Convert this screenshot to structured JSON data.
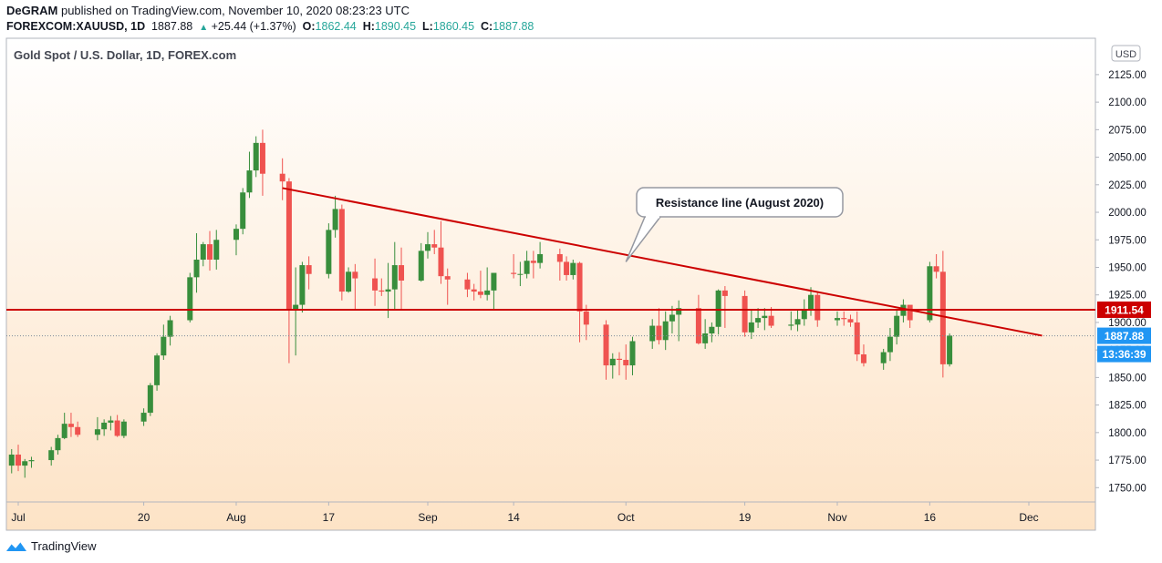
{
  "header": {
    "author": "DeGRAM",
    "published_text": "published on TradingView.com, November 10, 2020 08:23:23 UTC",
    "symbol": "FOREXCOM:XAUUSD, 1D",
    "last": "1887.88",
    "change": "+25.44 (+1.37%)",
    "o_label": "O:",
    "o_value": "1862.44",
    "h_label": "H:",
    "h_value": "1890.45",
    "l_label": "L:",
    "l_value": "1860.45",
    "c_label": "C:",
    "c_value": "1887.88"
  },
  "footer": {
    "brand": "TradingView"
  },
  "colors": {
    "up": "#26a69a",
    "down": "#ef5350",
    "candle_up_fill": "#388e3c",
    "resistance": "#cc0000",
    "price_tag": "#2196f3"
  },
  "chart_data": {
    "type": "candlestick",
    "title": "Gold Spot / U.S. Dollar, 1D, FOREX.com",
    "currency_label": "USD",
    "ylim": [
      1737,
      2158
    ],
    "y_ticks": [
      1750,
      1775,
      1800,
      1825,
      1850,
      1875,
      1900,
      1925,
      1950,
      1975,
      2000,
      2025,
      2050,
      2075,
      2100,
      2125
    ],
    "y_tick_labels": [
      "1750.00",
      "1775.00",
      "1800.00",
      "1825.00",
      "1850.00",
      "1875.00",
      "1900.00",
      "1925.00",
      "1950.00",
      "1975.00",
      "2000.00",
      "2025.00",
      "2050.00",
      "2075.00",
      "2100.00",
      "2125.00"
    ],
    "x_labels": [
      {
        "label": "Jul",
        "date": "2020-07-01"
      },
      {
        "label": "20",
        "date": "2020-07-20"
      },
      {
        "label": "Aug",
        "date": "2020-08-03"
      },
      {
        "label": "17",
        "date": "2020-08-17"
      },
      {
        "label": "Sep",
        "date": "2020-09-01"
      },
      {
        "label": "14",
        "date": "2020-09-14"
      },
      {
        "label": "Oct",
        "date": "2020-10-01"
      },
      {
        "label": "19",
        "date": "2020-10-19"
      },
      {
        "label": "Nov",
        "date": "2020-11-02"
      },
      {
        "label": "16",
        "date": "2020-11-16"
      },
      {
        "label": "Dec",
        "date": "2020-12-01"
      }
    ],
    "candles": [
      {
        "d": "2020-06-30",
        "o": 1770,
        "h": 1785,
        "l": 1763,
        "c": 1780
      },
      {
        "d": "2020-07-01",
        "o": 1780,
        "h": 1789,
        "l": 1765,
        "c": 1770
      },
      {
        "d": "2020-07-02",
        "o": 1770,
        "h": 1776,
        "l": 1759,
        "c": 1774
      },
      {
        "d": "2020-07-03",
        "o": 1774,
        "h": 1778,
        "l": 1768,
        "c": 1775
      },
      {
        "d": "2020-07-06",
        "o": 1775,
        "h": 1787,
        "l": 1770,
        "c": 1784
      },
      {
        "d": "2020-07-07",
        "o": 1784,
        "h": 1798,
        "l": 1780,
        "c": 1795
      },
      {
        "d": "2020-07-08",
        "o": 1795,
        "h": 1818,
        "l": 1794,
        "c": 1808
      },
      {
        "d": "2020-07-09",
        "o": 1808,
        "h": 1818,
        "l": 1796,
        "c": 1805
      },
      {
        "d": "2020-07-10",
        "o": 1805,
        "h": 1810,
        "l": 1796,
        "c": 1798
      },
      {
        "d": "2020-07-13",
        "o": 1798,
        "h": 1814,
        "l": 1793,
        "c": 1803
      },
      {
        "d": "2020-07-14",
        "o": 1803,
        "h": 1812,
        "l": 1797,
        "c": 1809
      },
      {
        "d": "2020-07-15",
        "o": 1809,
        "h": 1815,
        "l": 1802,
        "c": 1811
      },
      {
        "d": "2020-07-16",
        "o": 1811,
        "h": 1816,
        "l": 1796,
        "c": 1797
      },
      {
        "d": "2020-07-17",
        "o": 1797,
        "h": 1812,
        "l": 1795,
        "c": 1810
      },
      {
        "d": "2020-07-20",
        "o": 1810,
        "h": 1822,
        "l": 1806,
        "c": 1818
      },
      {
        "d": "2020-07-21",
        "o": 1818,
        "h": 1845,
        "l": 1815,
        "c": 1843
      },
      {
        "d": "2020-07-22",
        "o": 1843,
        "h": 1872,
        "l": 1838,
        "c": 1870
      },
      {
        "d": "2020-07-23",
        "o": 1870,
        "h": 1898,
        "l": 1866,
        "c": 1887
      },
      {
        "d": "2020-07-24",
        "o": 1887,
        "h": 1906,
        "l": 1879,
        "c": 1902
      },
      {
        "d": "2020-07-27",
        "o": 1902,
        "h": 1945,
        "l": 1900,
        "c": 1941
      },
      {
        "d": "2020-07-28",
        "o": 1941,
        "h": 1981,
        "l": 1927,
        "c": 1957
      },
      {
        "d": "2020-07-29",
        "o": 1957,
        "h": 1973,
        "l": 1951,
        "c": 1971
      },
      {
        "d": "2020-07-30",
        "o": 1971,
        "h": 1983,
        "l": 1947,
        "c": 1957
      },
      {
        "d": "2020-07-31",
        "o": 1957,
        "h": 1984,
        "l": 1948,
        "c": 1975
      },
      {
        "d": "2020-08-03",
        "o": 1975,
        "h": 1989,
        "l": 1961,
        "c": 1985
      },
      {
        "d": "2020-08-04",
        "o": 1985,
        "h": 2022,
        "l": 1980,
        "c": 2018
      },
      {
        "d": "2020-08-05",
        "o": 2018,
        "h": 2055,
        "l": 2013,
        "c": 2038
      },
      {
        "d": "2020-08-06",
        "o": 2038,
        "h": 2069,
        "l": 2032,
        "c": 2063
      },
      {
        "d": "2020-08-07",
        "o": 2063,
        "h": 2075,
        "l": 2015,
        "c": 2035
      },
      {
        "d": "2020-08-10",
        "o": 2035,
        "h": 2049,
        "l": 2011,
        "c": 2028
      },
      {
        "d": "2020-08-11",
        "o": 2028,
        "h": 2031,
        "l": 1863,
        "c": 1912
      },
      {
        "d": "2020-08-12",
        "o": 1912,
        "h": 1950,
        "l": 1870,
        "c": 1916
      },
      {
        "d": "2020-08-13",
        "o": 1916,
        "h": 1955,
        "l": 1909,
        "c": 1952
      },
      {
        "d": "2020-08-14",
        "o": 1952,
        "h": 1960,
        "l": 1930,
        "c": 1944
      },
      {
        "d": "2020-08-17",
        "o": 1944,
        "h": 1990,
        "l": 1940,
        "c": 1984
      },
      {
        "d": "2020-08-18",
        "o": 1984,
        "h": 2015,
        "l": 1977,
        "c": 2003
      },
      {
        "d": "2020-08-19",
        "o": 2003,
        "h": 2007,
        "l": 1920,
        "c": 1928
      },
      {
        "d": "2020-08-20",
        "o": 1928,
        "h": 1950,
        "l": 1927,
        "c": 1946
      },
      {
        "d": "2020-08-21",
        "o": 1946,
        "h": 1953,
        "l": 1911,
        "c": 1940
      },
      {
        "d": "2020-08-24",
        "o": 1940,
        "h": 1958,
        "l": 1915,
        "c": 1929
      },
      {
        "d": "2020-08-25",
        "o": 1929,
        "h": 1940,
        "l": 1924,
        "c": 1928
      },
      {
        "d": "2020-08-26",
        "o": 1928,
        "h": 1954,
        "l": 1904,
        "c": 1930
      },
      {
        "d": "2020-08-27",
        "o": 1930,
        "h": 1973,
        "l": 1912,
        "c": 1952
      },
      {
        "d": "2020-08-28",
        "o": 1952,
        "h": 1968,
        "l": 1912,
        "c": 1938
      },
      {
        "d": "2020-08-31",
        "o": 1938,
        "h": 1972,
        "l": 1937,
        "c": 1965
      },
      {
        "d": "2020-09-01",
        "o": 1965,
        "h": 1982,
        "l": 1958,
        "c": 1971
      },
      {
        "d": "2020-09-02",
        "o": 1971,
        "h": 1984,
        "l": 1962,
        "c": 1968
      },
      {
        "d": "2020-09-03",
        "o": 1968,
        "h": 1992,
        "l": 1935,
        "c": 1942
      },
      {
        "d": "2020-09-04",
        "o": 1942,
        "h": 1949,
        "l": 1916,
        "c": 1939
      },
      {
        "d": "2020-09-07",
        "o": 1939,
        "h": 1945,
        "l": 1923,
        "c": 1930
      },
      {
        "d": "2020-09-08",
        "o": 1930,
        "h": 1935,
        "l": 1920,
        "c": 1928
      },
      {
        "d": "2020-09-09",
        "o": 1928,
        "h": 1947,
        "l": 1922,
        "c": 1925
      },
      {
        "d": "2020-09-10",
        "o": 1925,
        "h": 1950,
        "l": 1920,
        "c": 1929
      },
      {
        "d": "2020-09-11",
        "o": 1929,
        "h": 1945,
        "l": 1912,
        "c": 1945
      },
      {
        "d": "2020-09-14",
        "o": 1945,
        "h": 1962,
        "l": 1940,
        "c": 1944
      },
      {
        "d": "2020-09-15",
        "o": 1944,
        "h": 1955,
        "l": 1933,
        "c": 1944
      },
      {
        "d": "2020-09-16",
        "o": 1944,
        "h": 1965,
        "l": 1940,
        "c": 1956
      },
      {
        "d": "2020-09-17",
        "o": 1956,
        "h": 1965,
        "l": 1940,
        "c": 1954
      },
      {
        "d": "2020-09-18",
        "o": 1954,
        "h": 1973,
        "l": 1949,
        "c": 1962
      },
      {
        "d": "2020-09-21",
        "o": 1962,
        "h": 1967,
        "l": 1938,
        "c": 1955
      },
      {
        "d": "2020-09-22",
        "o": 1955,
        "h": 1960,
        "l": 1938,
        "c": 1943
      },
      {
        "d": "2020-09-23",
        "o": 1943,
        "h": 1957,
        "l": 1939,
        "c": 1954
      },
      {
        "d": "2020-09-24",
        "o": 1954,
        "h": 1955,
        "l": 1882,
        "c": 1910
      },
      {
        "d": "2020-09-25",
        "o": 1910,
        "h": 1916,
        "l": 1884,
        "c": 1898
      },
      {
        "d": "2020-09-28",
        "o": 1898,
        "h": 1902,
        "l": 1848,
        "c": 1861
      },
      {
        "d": "2020-09-29",
        "o": 1861,
        "h": 1872,
        "l": 1849,
        "c": 1867
      },
      {
        "d": "2020-09-30",
        "o": 1867,
        "h": 1873,
        "l": 1852,
        "c": 1866
      },
      {
        "d": "2020-10-01",
        "o": 1866,
        "h": 1880,
        "l": 1848,
        "c": 1861
      },
      {
        "d": "2020-10-02",
        "o": 1861,
        "h": 1887,
        "l": 1852,
        "c": 1883
      },
      {
        "d": "2020-10-05",
        "o": 1883,
        "h": 1903,
        "l": 1876,
        "c": 1897
      },
      {
        "d": "2020-10-06",
        "o": 1897,
        "h": 1913,
        "l": 1880,
        "c": 1884
      },
      {
        "d": "2020-10-07",
        "o": 1884,
        "h": 1910,
        "l": 1875,
        "c": 1901
      },
      {
        "d": "2020-10-08",
        "o": 1901,
        "h": 1915,
        "l": 1890,
        "c": 1907
      },
      {
        "d": "2020-10-09",
        "o": 1907,
        "h": 1920,
        "l": 1883,
        "c": 1913
      },
      {
        "d": "2020-10-12",
        "o": 1913,
        "h": 1925,
        "l": 1880,
        "c": 1881
      },
      {
        "d": "2020-10-13",
        "o": 1881,
        "h": 1903,
        "l": 1876,
        "c": 1890
      },
      {
        "d": "2020-10-14",
        "o": 1890,
        "h": 1900,
        "l": 1882,
        "c": 1896
      },
      {
        "d": "2020-10-15",
        "o": 1896,
        "h": 1930,
        "l": 1889,
        "c": 1929
      },
      {
        "d": "2020-10-16",
        "o": 1929,
        "h": 1933,
        "l": 1895,
        "c": 1924
      },
      {
        "d": "2020-10-19",
        "o": 1924,
        "h": 1929,
        "l": 1887,
        "c": 1891
      },
      {
        "d": "2020-10-20",
        "o": 1891,
        "h": 1912,
        "l": 1885,
        "c": 1900
      },
      {
        "d": "2020-10-21",
        "o": 1900,
        "h": 1913,
        "l": 1895,
        "c": 1904
      },
      {
        "d": "2020-10-22",
        "o": 1904,
        "h": 1913,
        "l": 1893,
        "c": 1906
      },
      {
        "d": "2020-10-23",
        "o": 1906,
        "h": 1914,
        "l": 1895,
        "c": 1897
      },
      {
        "d": "2020-10-26",
        "o": 1897,
        "h": 1910,
        "l": 1893,
        "c": 1898
      },
      {
        "d": "2020-10-27",
        "o": 1898,
        "h": 1911,
        "l": 1892,
        "c": 1903
      },
      {
        "d": "2020-10-28",
        "o": 1903,
        "h": 1921,
        "l": 1897,
        "c": 1912
      },
      {
        "d": "2020-10-29",
        "o": 1912,
        "h": 1932,
        "l": 1906,
        "c": 1925
      },
      {
        "d": "2020-10-30",
        "o": 1925,
        "h": 1927,
        "l": 1896,
        "c": 1902
      },
      {
        "d": "2020-11-02",
        "o": 1902,
        "h": 1910,
        "l": 1897,
        "c": 1904
      },
      {
        "d": "2020-11-03",
        "o": 1904,
        "h": 1910,
        "l": 1897,
        "c": 1903
      },
      {
        "d": "2020-11-04",
        "o": 1903,
        "h": 1907,
        "l": 1896,
        "c": 1900
      },
      {
        "d": "2020-11-05",
        "o": 1900,
        "h": 1910,
        "l": 1865,
        "c": 1871
      },
      {
        "d": "2020-11-06",
        "o": 1871,
        "h": 1880,
        "l": 1860,
        "c": 1863
      },
      {
        "d": "2020-11-09",
        "o": 1863,
        "h": 1876,
        "l": 1857,
        "c": 1873
      },
      {
        "d": "2020-11-10",
        "o": 1873,
        "h": 1895,
        "l": 1865,
        "c": 1887
      },
      {
        "d": "2020-11-11",
        "o": 1887,
        "h": 1912,
        "l": 1880,
        "c": 1906
      },
      {
        "d": "2020-11-12",
        "o": 1906,
        "h": 1921,
        "l": 1900,
        "c": 1916
      },
      {
        "d": "2020-11-13",
        "o": 1916,
        "h": 1915,
        "l": 1895,
        "c": 1902
      },
      {
        "d": "2020-11-16",
        "o": 1902,
        "h": 1955,
        "l": 1900,
        "c": 1951
      },
      {
        "d": "2020-11-17",
        "o": 1951,
        "h": 1962,
        "l": 1940,
        "c": 1946
      },
      {
        "d": "2020-11-18",
        "o": 1946,
        "h": 1965,
        "l": 1850,
        "c": 1862
      },
      {
        "d": "2020-11-19",
        "o": 1862,
        "h": 1890,
        "l": 1860,
        "c": 1888
      }
    ],
    "resistance_line": {
      "start": {
        "date": "2020-08-10",
        "price": 2022
      },
      "end": {
        "date": "2020-12-03",
        "price": 1888
      }
    },
    "horizontal_line": {
      "price": 1911.54
    },
    "last_price_line": {
      "price": 1887.88
    },
    "annotation": {
      "text": "Resistance line (August 2020)",
      "points_to": {
        "date": "2020-10-01",
        "price": 1955
      }
    },
    "price_tags": [
      {
        "label": "1911.54",
        "kind": "horizontal"
      },
      {
        "label": "1887.88",
        "kind": "last"
      },
      {
        "label": "13:36:39",
        "kind": "countdown"
      }
    ]
  }
}
